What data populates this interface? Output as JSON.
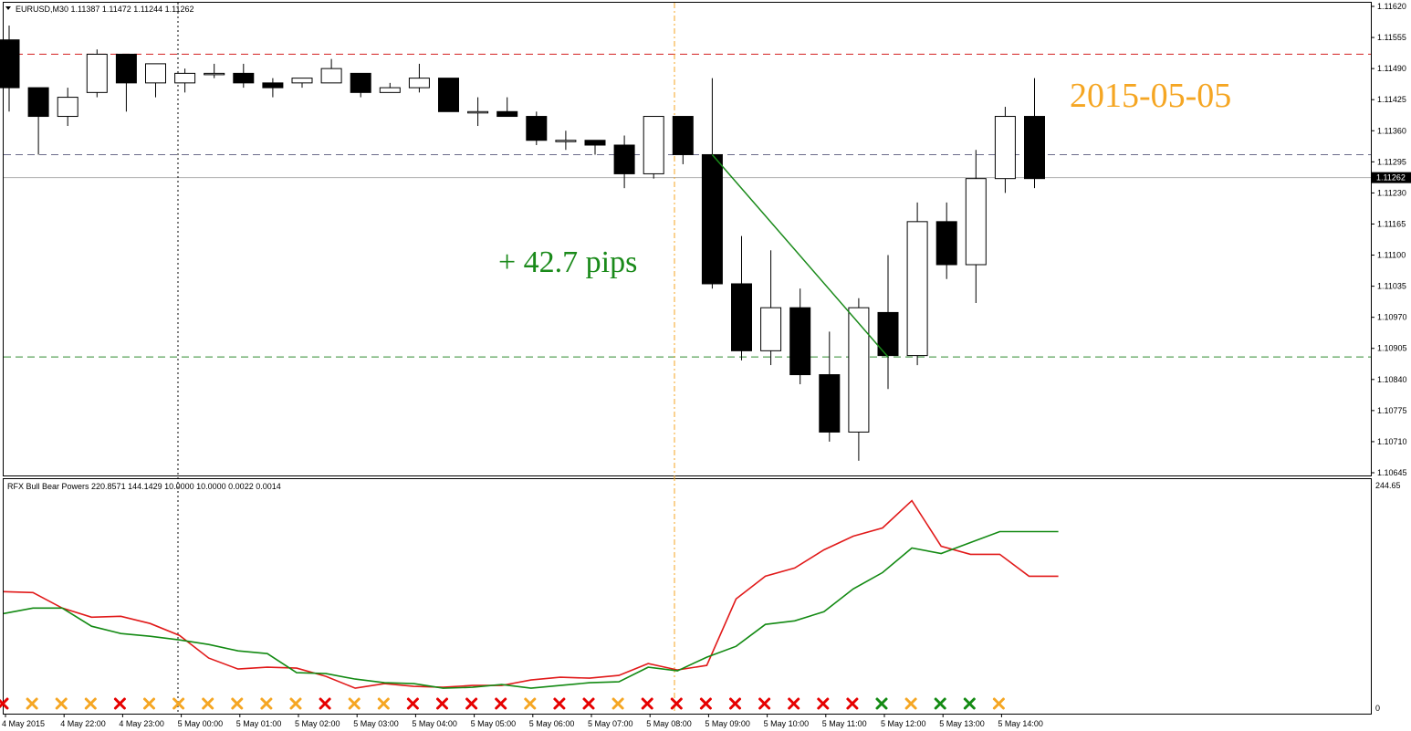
{
  "header": {
    "symbol_line": "EURUSD,M30  1.11387 1.11472 1.11244 1.11262",
    "indicator_line": "RFX Bull Bear Powers 220.8571 144.1429 10.0000 10.0000 0.0022 0.0014"
  },
  "annotations": {
    "date_label": "2015-05-05",
    "pips_label": "+ 42.7 pips"
  },
  "colors": {
    "bear_line": "#e11a1a",
    "bull_line": "#138a13",
    "resistance": "#d42020",
    "support": "#2e8b2e",
    "mid_level": "#6a6a8a",
    "vline": "#f5a623",
    "orange_x": "#f5a623",
    "red_x": "#e60000",
    "green_x": "#138a13"
  },
  "chart_data": [
    {
      "type": "candlestick",
      "symbol": "EURUSD",
      "timeframe": "M30",
      "ylim": [
        1.10645,
        1.1162
      ],
      "y_ticks": [
        "1.11620",
        "1.11555",
        "1.11490",
        "1.11425",
        "1.11360",
        "1.11295",
        "1.11230",
        "1.11165",
        "1.11100",
        "1.11035",
        "1.10970",
        "1.10905",
        "1.10840",
        "1.10775",
        "1.10710",
        "1.10645"
      ],
      "current_price": "1.11262",
      "levels": {
        "resistance": 1.1152,
        "mid": 1.1131,
        "current": 1.11262,
        "support": 1.10887
      },
      "candles": [
        {
          "o": 1.1155,
          "h": 1.1158,
          "l": 1.114,
          "c": 1.1145
        },
        {
          "o": 1.1145,
          "h": 1.1145,
          "l": 1.1131,
          "c": 1.1139
        },
        {
          "o": 1.1139,
          "h": 1.1145,
          "l": 1.1137,
          "c": 1.1143
        },
        {
          "o": 1.1144,
          "h": 1.1153,
          "l": 1.1143,
          "c": 1.1152
        },
        {
          "o": 1.1152,
          "h": 1.1152,
          "l": 1.114,
          "c": 1.1146
        },
        {
          "o": 1.1146,
          "h": 1.115,
          "l": 1.1143,
          "c": 1.115
        },
        {
          "o": 1.1146,
          "h": 1.1149,
          "l": 1.1144,
          "c": 1.1148
        },
        {
          "o": 1.1148,
          "h": 1.115,
          "l": 1.1147,
          "c": 1.1148
        },
        {
          "o": 1.1148,
          "h": 1.115,
          "l": 1.1145,
          "c": 1.1146
        },
        {
          "o": 1.1146,
          "h": 1.1147,
          "l": 1.1143,
          "c": 1.1145
        },
        {
          "o": 1.1146,
          "h": 1.1147,
          "l": 1.1145,
          "c": 1.1147
        },
        {
          "o": 1.1146,
          "h": 1.1151,
          "l": 1.1146,
          "c": 1.1149
        },
        {
          "o": 1.1148,
          "h": 1.1148,
          "l": 1.1143,
          "c": 1.1144
        },
        {
          "o": 1.1144,
          "h": 1.1146,
          "l": 1.1144,
          "c": 1.1145
        },
        {
          "o": 1.1145,
          "h": 1.115,
          "l": 1.1144,
          "c": 1.1147
        },
        {
          "o": 1.1147,
          "h": 1.1147,
          "l": 1.114,
          "c": 1.114
        },
        {
          "o": 1.114,
          "h": 1.1143,
          "l": 1.1137,
          "c": 1.114
        },
        {
          "o": 1.114,
          "h": 1.1143,
          "l": 1.1139,
          "c": 1.1139
        },
        {
          "o": 1.1139,
          "h": 1.114,
          "l": 1.1133,
          "c": 1.1134
        },
        {
          "o": 1.1134,
          "h": 1.1136,
          "l": 1.1132,
          "c": 1.1134
        },
        {
          "o": 1.1134,
          "h": 1.1134,
          "l": 1.1131,
          "c": 1.1133
        },
        {
          "o": 1.1133,
          "h": 1.1135,
          "l": 1.1124,
          "c": 1.1127
        },
        {
          "o": 1.1127,
          "h": 1.1139,
          "l": 1.1126,
          "c": 1.1139
        },
        {
          "o": 1.1139,
          "h": 1.1139,
          "l": 1.1129,
          "c": 1.1131
        },
        {
          "o": 1.1131,
          "h": 1.1147,
          "l": 1.1103,
          "c": 1.1104
        },
        {
          "o": 1.1104,
          "h": 1.1114,
          "l": 1.1088,
          "c": 1.109
        },
        {
          "o": 1.109,
          "h": 1.1111,
          "l": 1.1087,
          "c": 1.1099
        },
        {
          "o": 1.1099,
          "h": 1.1103,
          "l": 1.1083,
          "c": 1.1085
        },
        {
          "o": 1.1085,
          "h": 1.1094,
          "l": 1.1071,
          "c": 1.1073
        },
        {
          "o": 1.1073,
          "h": 1.1101,
          "l": 1.1067,
          "c": 1.1099
        },
        {
          "o": 1.1098,
          "h": 1.111,
          "l": 1.1082,
          "c": 1.1089
        },
        {
          "o": 1.1089,
          "h": 1.1121,
          "l": 1.1087,
          "c": 1.1117
        },
        {
          "o": 1.1117,
          "h": 1.1121,
          "l": 1.1105,
          "c": 1.1108
        },
        {
          "o": 1.1108,
          "h": 1.1132,
          "l": 1.11,
          "c": 1.1126
        },
        {
          "o": 1.1126,
          "h": 1.1141,
          "l": 1.1123,
          "c": 1.1139
        },
        {
          "o": 1.1139,
          "h": 1.1147,
          "l": 1.1124,
          "c": 1.1126
        }
      ],
      "trend_line": {
        "from_index": 24,
        "from_price": 1.1131,
        "to_index": 30,
        "to_price": 1.10887
      }
    },
    {
      "type": "line",
      "title": "RFX Bull Bear Powers 220.8571 144.1429 10.0000 10.0000 0.0022 0.0014",
      "ylim": [
        0,
        244.65
      ],
      "y_ticks": [
        "244.65",
        "0"
      ],
      "series": [
        {
          "color": "bear",
          "values": [
            128,
            127,
            110,
            100,
            101,
            93,
            80,
            55,
            43,
            45,
            44,
            35,
            22,
            27,
            24,
            23,
            25,
            25,
            31,
            34,
            33,
            36,
            49,
            42,
            47,
            120,
            145,
            154,
            174,
            189,
            198,
            228,
            178,
            169,
            169,
            145,
            145
          ]
        },
        {
          "color": "bull",
          "values": [
            104,
            110,
            110,
            90,
            82,
            79,
            75,
            70,
            63,
            60,
            39,
            38,
            32,
            28,
            27,
            22,
            23,
            26,
            22,
            25,
            28,
            29,
            45,
            41,
            56,
            68,
            92,
            96,
            106,
            131,
            149,
            176,
            170,
            182,
            194,
            194,
            194
          ]
        }
      ],
      "x_labels": [
        "4 May 2015",
        "4 May 22:00",
        "4 May 23:00",
        "5 May 00:00",
        "5 May 01:00",
        "5 May 02:00",
        "5 May 03:00",
        "5 May 04:00",
        "5 May 05:00",
        "5 May 06:00",
        "5 May 07:00",
        "5 May 08:00",
        "5 May 09:00",
        "5 May 10:00",
        "5 May 11:00",
        "5 May 12:00",
        "5 May 13:00",
        "5 May 14:00"
      ],
      "markers": [
        "red",
        "orange",
        "orange",
        "orange",
        "red",
        "orange",
        "orange",
        "orange",
        "orange",
        "orange",
        "orange",
        "red",
        "orange",
        "orange",
        "red",
        "red",
        "red",
        "red",
        "orange",
        "red",
        "red",
        "orange",
        "red",
        "red",
        "red",
        "red",
        "red",
        "red",
        "red",
        "red",
        "green",
        "orange",
        "green",
        "green",
        "orange"
      ]
    }
  ]
}
